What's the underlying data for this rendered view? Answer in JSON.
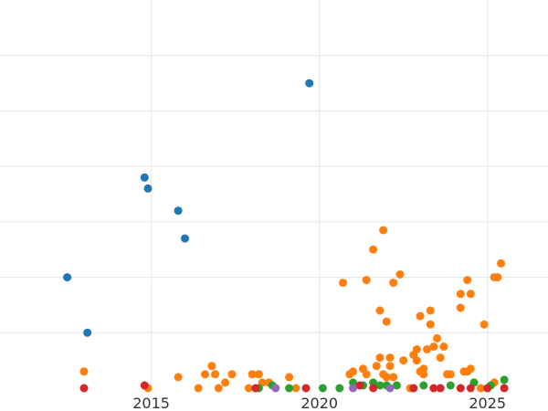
{
  "chart_data": {
    "type": "scatter",
    "title": "",
    "xlabel": "",
    "ylabel": "",
    "grid": true,
    "xlim": [
      2010.5,
      2026.8
    ],
    "ylim": [
      0,
      7
    ],
    "x_ticks": [
      2015,
      2020,
      2025
    ],
    "x_tick_labels": [
      "2015",
      "2020",
      "2025"
    ],
    "y_gridlines": [
      1,
      2,
      3,
      4,
      5,
      6
    ],
    "series": [
      {
        "color": "#1f77b4",
        "points": [
          [
            2012.5,
            2.0
          ],
          [
            2013.1,
            1.0
          ],
          [
            2014.8,
            3.8
          ],
          [
            2014.9,
            3.6
          ],
          [
            2015.8,
            3.2
          ],
          [
            2016.0,
            2.7
          ],
          [
            2019.7,
            5.5
          ]
        ]
      },
      {
        "color": "#ff7f0e",
        "points": [
          [
            2013.0,
            0.3
          ],
          [
            2014.9,
            0.0
          ],
          [
            2015.8,
            0.2
          ],
          [
            2016.4,
            0.0
          ],
          [
            2016.6,
            0.25
          ],
          [
            2016.8,
            0.4
          ],
          [
            2016.9,
            0.25
          ],
          [
            2017.0,
            0.0
          ],
          [
            2017.2,
            0.1
          ],
          [
            2017.4,
            0.25
          ],
          [
            2017.9,
            0.0
          ],
          [
            2018.0,
            0.25
          ],
          [
            2018.2,
            0.25
          ],
          [
            2018.3,
            0.1
          ],
          [
            2018.5,
            0.1
          ],
          [
            2019.1,
            0.2
          ],
          [
            2019.3,
            0.0
          ],
          [
            2020.7,
            1.9
          ],
          [
            2020.9,
            0.25
          ],
          [
            2021.0,
            0.3
          ],
          [
            2021.3,
            0.35
          ],
          [
            2021.4,
            0.25
          ],
          [
            2021.4,
            1.95
          ],
          [
            2021.6,
            2.5
          ],
          [
            2021.7,
            0.4
          ],
          [
            2021.8,
            1.4
          ],
          [
            2021.8,
            0.55
          ],
          [
            2021.9,
            0.25
          ],
          [
            2021.9,
            2.85
          ],
          [
            2022.0,
            0.2
          ],
          [
            2022.0,
            1.2
          ],
          [
            2022.1,
            0.55
          ],
          [
            2022.1,
            0.4
          ],
          [
            2022.2,
            0.2
          ],
          [
            2022.2,
            1.9
          ],
          [
            2022.4,
            2.05
          ],
          [
            2022.5,
            0.5
          ],
          [
            2022.7,
            0.0
          ],
          [
            2022.8,
            0.6
          ],
          [
            2022.9,
            0.7
          ],
          [
            2022.9,
            0.5
          ],
          [
            2023.0,
            1.3
          ],
          [
            2023.0,
            0.3
          ],
          [
            2023.1,
            0.35
          ],
          [
            2023.1,
            0.25
          ],
          [
            2023.2,
            0.7
          ],
          [
            2023.3,
            1.4
          ],
          [
            2023.3,
            1.15
          ],
          [
            2023.4,
            0.75
          ],
          [
            2023.5,
            0.9
          ],
          [
            2023.6,
            0.55
          ],
          [
            2023.7,
            0.75
          ],
          [
            2023.8,
            0.25
          ],
          [
            2023.9,
            0.25
          ],
          [
            2024.2,
            1.45
          ],
          [
            2024.2,
            1.7
          ],
          [
            2024.3,
            0.3
          ],
          [
            2024.4,
            1.95
          ],
          [
            2024.4,
            0.3
          ],
          [
            2024.5,
            0.35
          ],
          [
            2024.5,
            1.7
          ],
          [
            2024.6,
            0.1
          ],
          [
            2024.8,
            0.0
          ],
          [
            2024.9,
            1.15
          ],
          [
            2025.0,
            0.0
          ],
          [
            2025.2,
            0.1
          ],
          [
            2025.2,
            2.0
          ],
          [
            2025.3,
            2.0
          ],
          [
            2025.4,
            2.25
          ]
        ]
      },
      {
        "color": "#2ca02c",
        "points": [
          [
            2018.2,
            0.0
          ],
          [
            2018.6,
            0.05
          ],
          [
            2019.1,
            0.0
          ],
          [
            2020.1,
            0.0
          ],
          [
            2020.6,
            0.0
          ],
          [
            2021.0,
            0.1
          ],
          [
            2021.3,
            0.05
          ],
          [
            2021.6,
            0.1
          ],
          [
            2021.8,
            0.05
          ],
          [
            2022.0,
            0.05
          ],
          [
            2022.3,
            0.05
          ],
          [
            2023.1,
            0.05
          ],
          [
            2023.9,
            0.05
          ],
          [
            2024.6,
            0.1
          ],
          [
            2025.1,
            0.05
          ],
          [
            2025.5,
            0.15
          ]
        ]
      },
      {
        "color": "#d62728",
        "points": [
          [
            2013.0,
            0.0
          ],
          [
            2014.8,
            0.05
          ],
          [
            2018.1,
            0.0
          ],
          [
            2019.6,
            0.0
          ],
          [
            2021.2,
            0.05
          ],
          [
            2021.6,
            0.0
          ],
          [
            2022.8,
            0.0
          ],
          [
            2023.4,
            0.0
          ],
          [
            2023.6,
            0.0
          ],
          [
            2024.2,
            0.0
          ],
          [
            2024.5,
            0.0
          ],
          [
            2025.0,
            0.0
          ],
          [
            2025.5,
            0.0
          ]
        ]
      },
      {
        "color": "#9467bd",
        "points": [
          [
            2018.7,
            0.0
          ],
          [
            2021.0,
            0.0
          ],
          [
            2022.1,
            0.0
          ]
        ]
      }
    ]
  }
}
